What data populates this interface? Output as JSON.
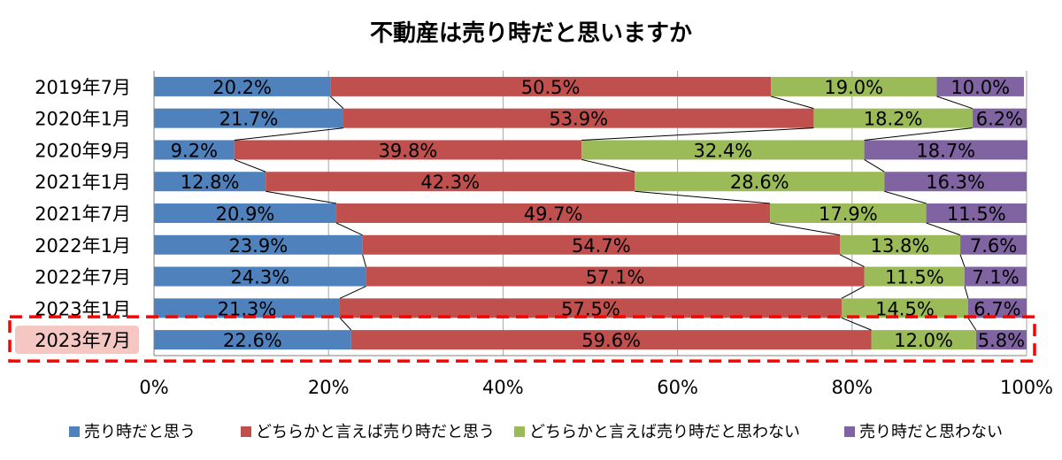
{
  "chart_data": {
    "type": "bar",
    "orientation": "horizontal",
    "stacked": "percent",
    "title": "不動産は売り時だと思いますか",
    "categories": [
      "2019年7月",
      "2020年1月",
      "2020年9月",
      "2021年1月",
      "2021年7月",
      "2022年1月",
      "2022年7月",
      "2023年1月",
      "2023年7月"
    ],
    "series": [
      {
        "name": "売り時だと思う",
        "color": "#4f81bd",
        "values": [
          20.2,
          21.7,
          9.2,
          12.8,
          20.9,
          23.9,
          24.3,
          21.3,
          22.6
        ],
        "labels": [
          "20.2%",
          "21.7%",
          "9.2%",
          "12.8%",
          "20.9%",
          "23.9%",
          "24.3%",
          "21.3%",
          "22.6%"
        ]
      },
      {
        "name": "どちらかと言えば売り時だと思う",
        "color": "#c0504d",
        "values": [
          50.5,
          53.9,
          39.8,
          42.3,
          49.7,
          54.7,
          57.1,
          57.5,
          59.6
        ],
        "labels": [
          "50.5%",
          "53.9%",
          "39.8%",
          "42.3%",
          "49.7%",
          "54.7%",
          "57.1%",
          "57.5%",
          "59.6%"
        ]
      },
      {
        "name": "どちらかと言えば売り時だと思わない",
        "color": "#9bbb59",
        "values": [
          19.0,
          18.2,
          32.4,
          28.6,
          17.9,
          13.8,
          11.5,
          14.5,
          12.0
        ],
        "labels": [
          "19.0%",
          "18.2%",
          "32.4%",
          "28.6%",
          "17.9%",
          "13.8%",
          "11.5%",
          "14.5%",
          "12.0%"
        ]
      },
      {
        "name": "売り時だと思わない",
        "color": "#8064a2",
        "values": [
          10.0,
          6.2,
          18.7,
          16.3,
          11.5,
          7.6,
          7.1,
          6.7,
          5.8
        ],
        "labels": [
          "10.0%",
          "6.2%",
          "18.7%",
          "16.3%",
          "11.5%",
          "7.6%",
          "7.1%",
          "6.7%",
          "5.8%"
        ]
      }
    ],
    "xlim": [
      0,
      100
    ],
    "xticks": [
      "0%",
      "20%",
      "40%",
      "60%",
      "80%",
      "100%"
    ],
    "grid": true,
    "series_lines": true,
    "legend_position": "bottom",
    "highlight": {
      "category": "2023年7月",
      "border_color": "#ff0000",
      "label_bg": "#f4c7c3"
    }
  }
}
